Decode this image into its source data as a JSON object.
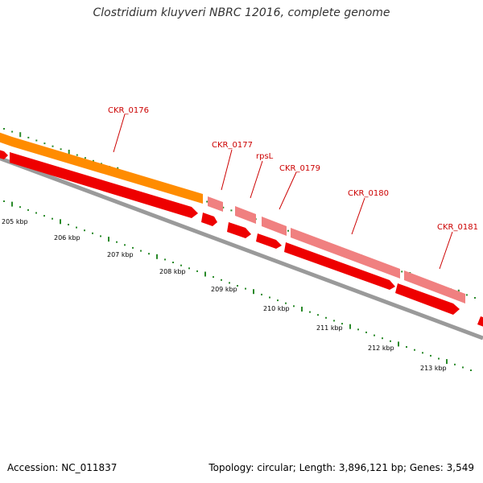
{
  "title": "Clostridium kluyveri NBRC 12016, complete genome",
  "footer": {
    "accession": "Accession: NC_011837",
    "summary": "Topology: circular; Length: 3,896,121 bp; Genes: 3,549"
  },
  "colors": {
    "backbone": "#9a9a9a",
    "tick": "#2a8a2a",
    "cds": "#ee0000",
    "gene_highlight": "#ff8c00",
    "gene_light": "#f08080",
    "label": "#cc0000"
  },
  "kbp_labels": [
    "205 kbp",
    "206 kbp",
    "207 kbp",
    "208 kbp",
    "209 kbp",
    "210 kbp",
    "211 kbp",
    "212 kbp",
    "213 kbp"
  ],
  "genes": [
    {
      "label": "CKR_0176",
      "color": "orange"
    },
    {
      "label": "CKR_0177",
      "color": "light"
    },
    {
      "label": "rpsL",
      "color": "light"
    },
    {
      "label": "CKR_0179",
      "color": "light"
    },
    {
      "label": "CKR_0180",
      "color": "light"
    },
    {
      "label": "CKR_0181",
      "color": "light"
    }
  ]
}
